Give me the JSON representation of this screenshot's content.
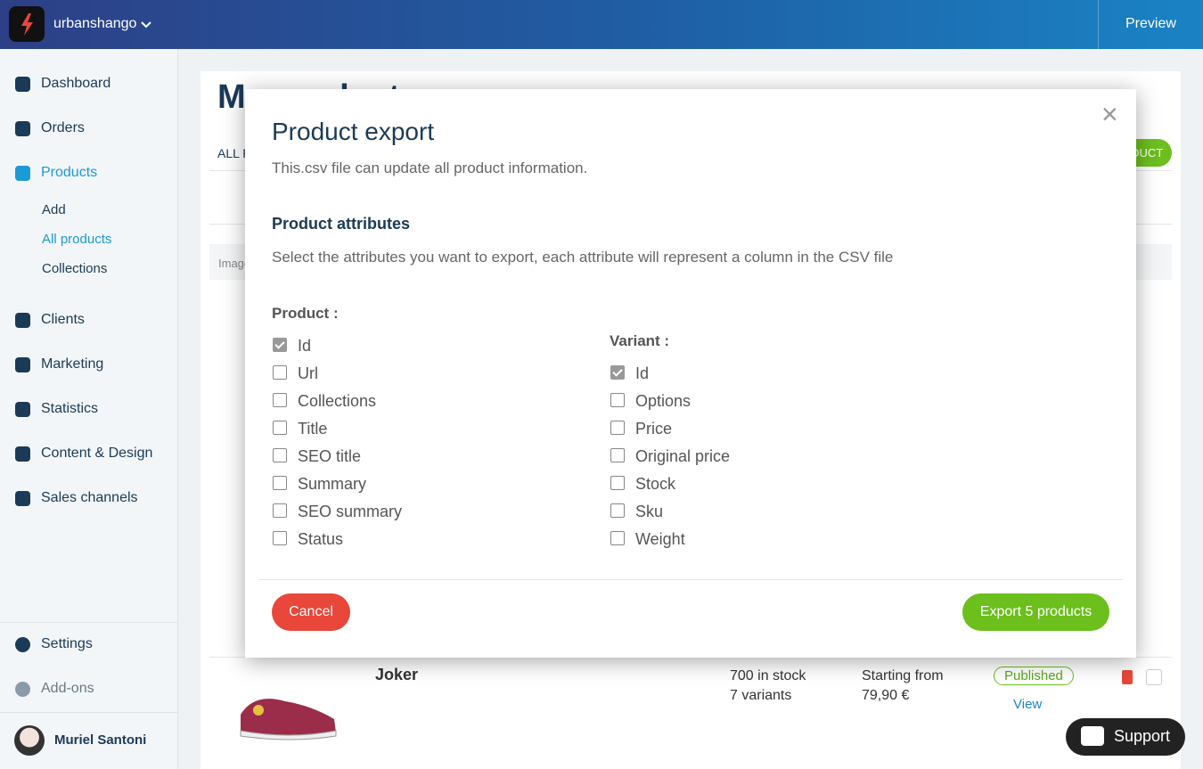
{
  "header": {
    "store": "urbanshango",
    "preview": "Preview"
  },
  "sidebar": {
    "nav": [
      "Dashboard",
      "Orders",
      "Products",
      "Clients",
      "Marketing",
      "Statistics",
      "Content & Design",
      "Sales channels"
    ],
    "subnav": [
      "Add",
      "All products",
      "Collections"
    ],
    "bottom": [
      "Settings",
      "Add-ons"
    ],
    "user": "Muriel Santoni"
  },
  "background": {
    "title": "My products",
    "tab": "ALL PRODUCTS",
    "add_button": "ADD PRODUCT",
    "image_header": "Image",
    "row": {
      "name": "Joker",
      "stock": "700 in stock",
      "variants": "7 variants",
      "price_prefix": "Starting from",
      "price": "79,90 €",
      "status": "Published",
      "view": "View"
    }
  },
  "modal": {
    "close": "×",
    "title": "Product export",
    "subtitle": "This.csv file can update all product information.",
    "section": "Product attributes",
    "description": "Select the attributes you want to export, each attribute will represent a column in the CSV file",
    "product_label": "Product :",
    "product_attributes": [
      {
        "label": "Id",
        "checked": true
      },
      {
        "label": "Url",
        "checked": false
      },
      {
        "label": "Collections",
        "checked": false
      },
      {
        "label": "Title",
        "checked": false
      },
      {
        "label": "SEO title",
        "checked": false
      },
      {
        "label": "Summary",
        "checked": false
      },
      {
        "label": "SEO summary",
        "checked": false
      },
      {
        "label": "Status",
        "checked": false
      }
    ],
    "variant_label": "Variant :",
    "variant_attributes": [
      {
        "label": "Id",
        "checked": true
      },
      {
        "label": "Options",
        "checked": false
      },
      {
        "label": "Price",
        "checked": false
      },
      {
        "label": "Original price",
        "checked": false
      },
      {
        "label": "Stock",
        "checked": false
      },
      {
        "label": "Sku",
        "checked": false
      },
      {
        "label": "Weight",
        "checked": false
      }
    ],
    "cancel": "Cancel",
    "export": "Export 5 products"
  },
  "support": "Support"
}
